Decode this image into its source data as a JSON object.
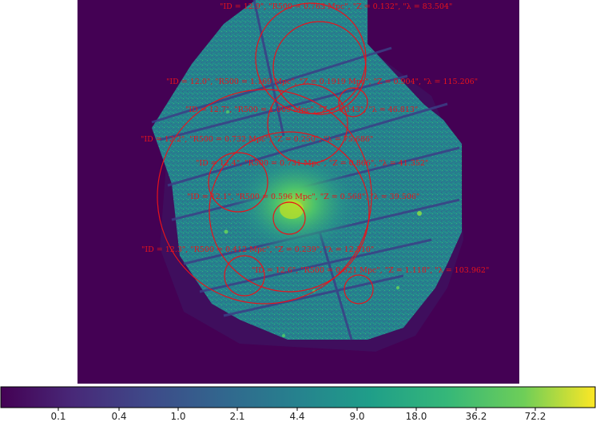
{
  "image": {
    "background_color": "#440154",
    "annotation_color": "#e8131b"
  },
  "annotations": [
    {
      "text": "\"ID = 12.9\", \"R500 = 0.763 Mpc\", \"Z = 0.132\", \"λ = 83.504\""
    },
    {
      "text": "\"ID = 12.0\", \"R500 = 1.169 Mpc\", \"Z = 0.1919 Mpc\", \"Z = 0.904\", \"λ = 115.206\""
    },
    {
      "text": "\"ID = 12.7\", \"R500 = 1.009 Mpc\", \"Z = 0.143\", \"λ = 46.813\""
    },
    {
      "text": "\"ID = 12.2\", \"R500 = 0.732 Mpc\", \"Z = 0.250\", \"λ = 75.686\""
    },
    {
      "text": "\"ID = 12.4\", \"R500 = 0.731 Mpc\", \"Z = 0.866\", \"λ = 41.352\""
    },
    {
      "text": "\"ID = 12.1\", \"R500 = 0.596 Mpc\", \"Z = 0.568\", \"λ = 39.506\""
    },
    {
      "text": "\"ID = 12.3\", \"R500 = 0.412 Mpc\", \"Z = 0.239\", \"λ = 12.310\""
    },
    {
      "text": "\"ID = 12.6\", \"R500 = 0.621 Mpc\", \"Z = 1.118\", \"λ = 103.962\""
    }
  ],
  "colorbar": {
    "ticks": [
      "0.1",
      "0.4",
      "1.0",
      "2.1",
      "4.4",
      "9.0",
      "18.0",
      "36.2",
      "72.2"
    ]
  }
}
